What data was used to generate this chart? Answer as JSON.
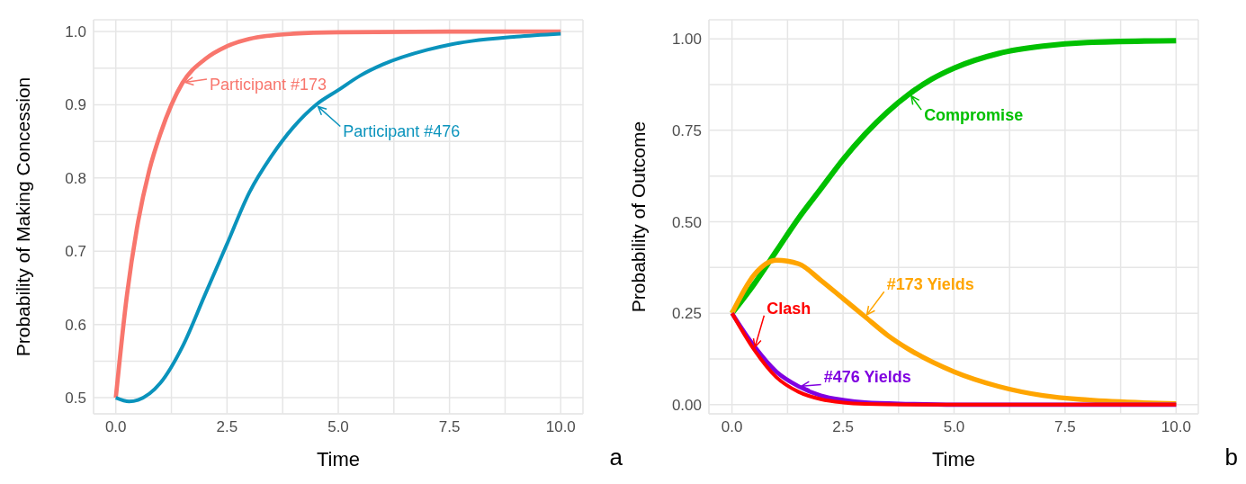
{
  "chart_data": [
    {
      "type": "line",
      "xlabel": "Time",
      "ylabel": "Probability of Making Concession",
      "xlim": [
        -0.5,
        10.5
      ],
      "ylim": [
        0.478,
        1.016
      ],
      "xticks": [
        {
          "value": 0,
          "label": "0.0"
        },
        {
          "value": 1.25,
          "label": null
        },
        {
          "value": 2.5,
          "label": "2.5"
        },
        {
          "value": 3.75,
          "label": null
        },
        {
          "value": 5,
          "label": "5.0"
        },
        {
          "value": 6.25,
          "label": null
        },
        {
          "value": 7.5,
          "label": "7.5"
        },
        {
          "value": 8.75,
          "label": null
        },
        {
          "value": 10,
          "label": "10.0"
        }
      ],
      "yticks": [
        0.5,
        {
          "value": 0.55,
          "label": null
        },
        0.6,
        {
          "value": 0.65,
          "label": null
        },
        0.7,
        {
          "value": 0.75,
          "label": null
        },
        0.8,
        {
          "value": 0.85,
          "label": null
        },
        0.9,
        {
          "value": 0.95,
          "label": null
        },
        {
          "value": 1,
          "label": "1.0"
        }
      ],
      "grid": true,
      "marker": "none",
      "line_style": "solid",
      "series": [
        {
          "name": "Participant #173",
          "color": "#f8766d",
          "x": [
            0,
            0.25,
            0.5,
            0.75,
            1,
            1.5,
            2,
            2.5,
            3,
            4,
            5,
            7.5,
            10
          ],
          "values": [
            0.5,
            0.64,
            0.74,
            0.81,
            0.86,
            0.93,
            0.962,
            0.98,
            0.99,
            0.997,
            0.999,
            1.0,
            1.0
          ]
        },
        {
          "name": "Participant #476",
          "color": "#0a93bc",
          "x": [
            0,
            0.3,
            0.5,
            1,
            1.5,
            2,
            2.5,
            3,
            3.5,
            4,
            4.5,
            5,
            5.5,
            6,
            7,
            7.5,
            8,
            9,
            10
          ],
          "values": [
            0.5,
            0.495,
            0.497,
            0.52,
            0.57,
            0.64,
            0.71,
            0.78,
            0.83,
            0.87,
            0.9,
            0.92,
            0.94,
            0.955,
            0.975,
            0.982,
            0.987,
            0.993,
            0.997
          ]
        }
      ],
      "annotations": [
        "a"
      ]
    },
    {
      "type": "line",
      "xlabel": "Time",
      "ylabel": "Probability of Outcome",
      "xlim": [
        -0.52,
        10.5
      ],
      "ylim": [
        -0.025,
        1.052
      ],
      "xticks": [
        {
          "value": 0,
          "label": "0.0"
        },
        {
          "value": 1.25,
          "label": null
        },
        {
          "value": 2.5,
          "label": "2.5"
        },
        {
          "value": 3.75,
          "label": null
        },
        {
          "value": 5,
          "label": "5.0"
        },
        {
          "value": 6.25,
          "label": null
        },
        {
          "value": 7.5,
          "label": "7.5"
        },
        {
          "value": 8.75,
          "label": null
        },
        {
          "value": 10,
          "label": "10.0"
        }
      ],
      "yticks": [
        {
          "value": 0,
          "label": "0.00"
        },
        {
          "value": 0.125,
          "label": null
        },
        {
          "value": 0.25,
          "label": "0.25"
        },
        {
          "value": 0.375,
          "label": null
        },
        {
          "value": 0.5,
          "label": "0.50"
        },
        {
          "value": 0.625,
          "label": null
        },
        {
          "value": 0.75,
          "label": "0.75"
        },
        {
          "value": 0.875,
          "label": null
        },
        {
          "value": 1,
          "label": "1.00"
        }
      ],
      "grid": true,
      "marker": "none",
      "line_style": "solid",
      "series": [
        {
          "name": "Compromise",
          "color": "#00c000",
          "x": [
            0,
            0.5,
            1,
            1.5,
            2,
            2.5,
            3,
            3.5,
            4,
            4.5,
            5,
            6,
            7,
            8,
            10
          ],
          "values": [
            0.25,
            0.33,
            0.42,
            0.51,
            0.59,
            0.67,
            0.74,
            0.8,
            0.85,
            0.89,
            0.92,
            0.96,
            0.98,
            0.99,
            0.995
          ]
        },
        {
          "name": "#173 Yields",
          "color": "#ffa500",
          "x": [
            0,
            0.5,
            1,
            1.5,
            2,
            2.5,
            3,
            3.5,
            4,
            5,
            6,
            7,
            8,
            10
          ],
          "values": [
            0.25,
            0.355,
            0.395,
            0.385,
            0.34,
            0.29,
            0.24,
            0.19,
            0.15,
            0.09,
            0.05,
            0.025,
            0.013,
            0.003
          ]
        },
        {
          "name": "#476 Yields",
          "color": "#8000e0",
          "x": [
            0,
            0.5,
            1,
            1.5,
            2,
            2.5,
            3,
            4,
            5,
            10
          ],
          "values": [
            0.25,
            0.16,
            0.09,
            0.05,
            0.025,
            0.013,
            0.006,
            0.002,
            0,
            0
          ]
        },
        {
          "name": "Clash",
          "color": "#ff0000",
          "x": [
            0,
            0.5,
            1,
            1.5,
            2,
            2.5,
            3,
            4,
            10
          ],
          "values": [
            0.25,
            0.15,
            0.075,
            0.035,
            0.015,
            0.006,
            0.002,
            0,
            0
          ]
        }
      ],
      "annotations": [
        "b"
      ]
    }
  ]
}
